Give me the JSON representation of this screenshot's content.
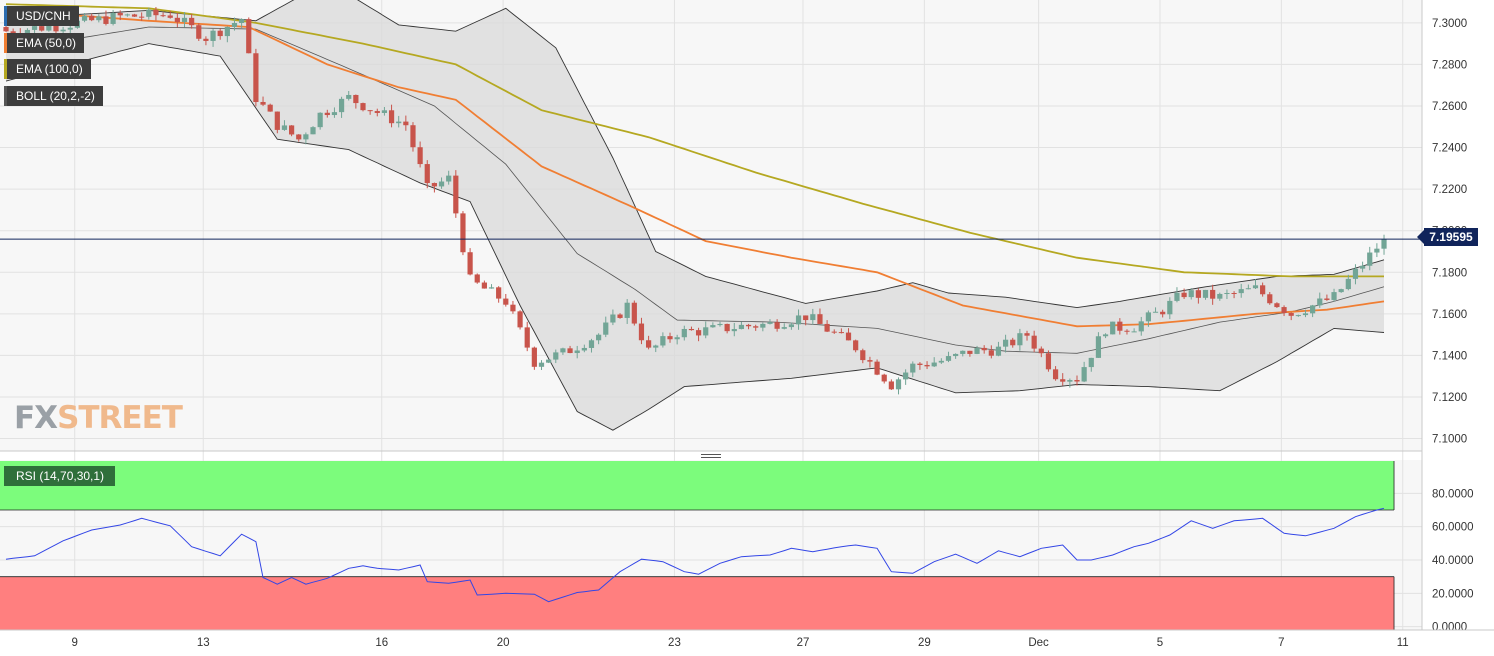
{
  "legend": {
    "symbol": "USD/CNH",
    "ema50": "EMA (50,0)",
    "ema100": "EMA (100,0)",
    "boll": "BOLL (20,2,-2)",
    "rsi": "RSI (14,70,30,1)"
  },
  "colors": {
    "up": "#72a596",
    "down": "#c8544b",
    "ema50": "#f07e33",
    "ema100": "#b5a821",
    "boll_fill": "#d9d9d9",
    "rsi_line": "#3346e6",
    "overbought": "#7cfc7c",
    "oversold": "#ff7f7f",
    "current_price": "#10245b"
  },
  "logo": {
    "part1": "FX",
    "part2": "STREET"
  },
  "current_price_label": "7.19595",
  "chart_data": [
    {
      "type": "candlestick",
      "title": "USD/CNH",
      "price_axis": {
        "ticks": [
          "7.3000",
          "7.2800",
          "7.2600",
          "7.2400",
          "7.2200",
          "7.2000",
          "7.1800",
          "7.1600",
          "7.1400",
          "7.1200",
          "7.1000"
        ],
        "range": [
          7.094,
          7.311
        ]
      },
      "x_labels": [
        {
          "label": "9",
          "index": 5
        },
        {
          "label": "13",
          "index": 23
        },
        {
          "label": "16",
          "index": 48
        },
        {
          "label": "20",
          "index": 65
        },
        {
          "label": "23",
          "index": 89
        },
        {
          "label": "27",
          "index": 107
        },
        {
          "label": "29",
          "index": 124
        },
        {
          "label": "Dec",
          "index": 140
        },
        {
          "label": "5",
          "index": 157
        },
        {
          "label": "7",
          "index": 174
        },
        {
          "label": "11",
          "index": 191
        }
      ],
      "candle_count": 194,
      "close_path": [
        [
          0,
          7.296
        ],
        [
          8,
          7.299
        ],
        [
          16,
          7.303
        ],
        [
          23,
          7.304
        ],
        [
          28,
          7.293
        ],
        [
          33,
          7.302
        ],
        [
          35,
          7.264
        ],
        [
          38,
          7.251
        ],
        [
          41,
          7.244
        ],
        [
          44,
          7.256
        ],
        [
          48,
          7.264
        ],
        [
          52,
          7.257
        ],
        [
          56,
          7.251
        ],
        [
          59,
          7.22
        ],
        [
          62,
          7.225
        ],
        [
          65,
          7.176
        ],
        [
          70,
          7.166
        ],
        [
          74,
          7.137
        ],
        [
          78,
          7.141
        ],
        [
          83,
          7.15
        ],
        [
          87,
          7.164
        ],
        [
          90,
          7.142
        ],
        [
          94,
          7.151
        ],
        [
          98,
          7.152
        ],
        [
          103,
          7.154
        ],
        [
          107,
          7.155
        ],
        [
          112,
          7.159
        ],
        [
          119,
          7.144
        ],
        [
          124,
          7.126
        ],
        [
          127,
          7.135
        ],
        [
          132,
          7.138
        ],
        [
          135,
          7.142
        ],
        [
          139,
          7.143
        ],
        [
          143,
          7.15
        ],
        [
          147,
          7.131
        ],
        [
          150,
          7.129
        ],
        [
          154,
          7.153
        ],
        [
          158,
          7.154
        ],
        [
          162,
          7.162
        ],
        [
          165,
          7.17
        ],
        [
          170,
          7.168
        ],
        [
          175,
          7.172
        ],
        [
          180,
          7.16
        ],
        [
          186,
          7.168
        ],
        [
          190,
          7.184
        ],
        [
          193,
          7.19595
        ]
      ],
      "current_price": 7.19595,
      "ema50": [
        [
          0,
          7.306
        ],
        [
          20,
          7.301
        ],
        [
          34,
          7.298
        ],
        [
          45,
          7.28
        ],
        [
          55,
          7.269
        ],
        [
          63,
          7.263
        ],
        [
          75,
          7.231
        ],
        [
          88,
          7.211
        ],
        [
          98,
          7.195
        ],
        [
          110,
          7.187
        ],
        [
          122,
          7.18
        ],
        [
          134,
          7.164
        ],
        [
          150,
          7.154
        ],
        [
          160,
          7.155
        ],
        [
          175,
          7.16
        ],
        [
          185,
          7.162
        ],
        [
          193,
          7.166
        ]
      ],
      "ema100": [
        [
          0,
          7.309
        ],
        [
          20,
          7.307
        ],
        [
          35,
          7.3
        ],
        [
          50,
          7.29
        ],
        [
          63,
          7.28
        ],
        [
          75,
          7.258
        ],
        [
          90,
          7.245
        ],
        [
          105,
          7.228
        ],
        [
          120,
          7.213
        ],
        [
          135,
          7.199
        ],
        [
          150,
          7.187
        ],
        [
          165,
          7.18
        ],
        [
          180,
          7.178
        ],
        [
          193,
          7.178
        ]
      ],
      "boll_upper": [
        [
          0,
          7.302
        ],
        [
          20,
          7.306
        ],
        [
          35,
          7.301
        ],
        [
          45,
          7.32
        ],
        [
          55,
          7.299
        ],
        [
          63,
          7.296
        ],
        [
          70,
          7.307
        ],
        [
          77,
          7.288
        ],
        [
          85,
          7.235
        ],
        [
          91,
          7.19
        ],
        [
          98,
          7.178
        ],
        [
          112,
          7.165
        ],
        [
          122,
          7.171
        ],
        [
          127,
          7.175
        ],
        [
          132,
          7.17
        ],
        [
          140,
          7.168
        ],
        [
          150,
          7.163
        ],
        [
          156,
          7.166
        ],
        [
          168,
          7.173
        ],
        [
          178,
          7.178
        ],
        [
          186,
          7.179
        ],
        [
          193,
          7.186
        ]
      ],
      "boll_middle": [
        [
          0,
          7.287
        ],
        [
          20,
          7.298
        ],
        [
          35,
          7.297
        ],
        [
          48,
          7.278
        ],
        [
          60,
          7.26
        ],
        [
          70,
          7.232
        ],
        [
          80,
          7.189
        ],
        [
          88,
          7.172
        ],
        [
          94,
          7.157
        ],
        [
          108,
          7.156
        ],
        [
          122,
          7.153
        ],
        [
          133,
          7.145
        ],
        [
          140,
          7.142
        ],
        [
          150,
          7.141
        ],
        [
          160,
          7.148
        ],
        [
          170,
          7.156
        ],
        [
          180,
          7.161
        ],
        [
          186,
          7.166
        ],
        [
          193,
          7.173
        ]
      ],
      "boll_lower": [
        [
          0,
          7.272
        ],
        [
          20,
          7.29
        ],
        [
          30,
          7.284
        ],
        [
          38,
          7.244
        ],
        [
          48,
          7.239
        ],
        [
          58,
          7.223
        ],
        [
          65,
          7.214
        ],
        [
          72,
          7.164
        ],
        [
          80,
          7.113
        ],
        [
          85,
          7.104
        ],
        [
          90,
          7.114
        ],
        [
          95,
          7.125
        ],
        [
          110,
          7.129
        ],
        [
          122,
          7.134
        ],
        [
          133,
          7.122
        ],
        [
          142,
          7.123
        ],
        [
          150,
          7.126
        ],
        [
          160,
          7.125
        ],
        [
          170,
          7.123
        ],
        [
          178,
          7.137
        ],
        [
          186,
          7.153
        ],
        [
          193,
          7.151
        ]
      ]
    },
    {
      "type": "line",
      "title": "RSI (14,70,30,1)",
      "y_ticks": [
        "80.0000",
        "60.0000",
        "40.0000",
        "20.0000",
        "0.0000"
      ],
      "y_range": [
        -2,
        100
      ],
      "overbought": 70,
      "oversold": 30,
      "values": [
        [
          0,
          40.5
        ],
        [
          4,
          42.5
        ],
        [
          8,
          51.5
        ],
        [
          12,
          58
        ],
        [
          16,
          61
        ],
        [
          19,
          65
        ],
        [
          23,
          60.5
        ],
        [
          26,
          48
        ],
        [
          30,
          42.5
        ],
        [
          33,
          55.5
        ],
        [
          35,
          51
        ],
        [
          36,
          29.5
        ],
        [
          38,
          25.5
        ],
        [
          40,
          29.5
        ],
        [
          42,
          25.5
        ],
        [
          45,
          29
        ],
        [
          48,
          35
        ],
        [
          50,
          36.5
        ],
        [
          52,
          35
        ],
        [
          55,
          34
        ],
        [
          58,
          37
        ],
        [
          59,
          27
        ],
        [
          62,
          26
        ],
        [
          65,
          28
        ],
        [
          66,
          19
        ],
        [
          70,
          20
        ],
        [
          74,
          19.5
        ],
        [
          76,
          15
        ],
        [
          80,
          20.5
        ],
        [
          83,
          22
        ],
        [
          86,
          33
        ],
        [
          89,
          40.5
        ],
        [
          92,
          39
        ],
        [
          95,
          33
        ],
        [
          97,
          31.5
        ],
        [
          100,
          38
        ],
        [
          103,
          42
        ],
        [
          107,
          43
        ],
        [
          110,
          47
        ],
        [
          113,
          45
        ],
        [
          117,
          48
        ],
        [
          119,
          49
        ],
        [
          122,
          47
        ],
        [
          124,
          33
        ],
        [
          127,
          32
        ],
        [
          130,
          39
        ],
        [
          133,
          43.5
        ],
        [
          136,
          38
        ],
        [
          139,
          45.5
        ],
        [
          142,
          42
        ],
        [
          145,
          47
        ],
        [
          148,
          49
        ],
        [
          150,
          40
        ],
        [
          152,
          40
        ],
        [
          155,
          43
        ],
        [
          158,
          48
        ],
        [
          160,
          50
        ],
        [
          163,
          55
        ],
        [
          166,
          63.5
        ],
        [
          169,
          59
        ],
        [
          172,
          63.5
        ],
        [
          176,
          65
        ],
        [
          179,
          56
        ],
        [
          182,
          54.5
        ],
        [
          186,
          59
        ],
        [
          189,
          66
        ],
        [
          192,
          70
        ],
        [
          193,
          71
        ]
      ]
    }
  ]
}
